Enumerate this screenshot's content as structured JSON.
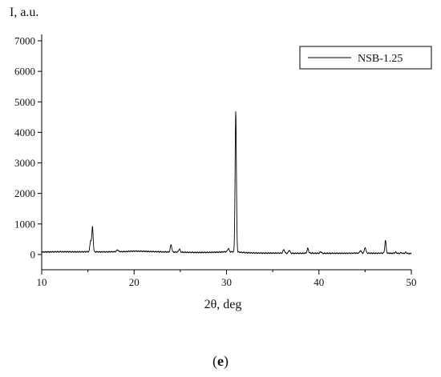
{
  "chart_data": {
    "type": "line",
    "ylabel": "I, a.u.",
    "xlabel": "2θ, deg",
    "xlim": [
      10,
      50
    ],
    "ylim": [
      -500,
      7000
    ],
    "x_ticks": [
      10,
      20,
      30,
      40,
      50
    ],
    "y_ticks": [
      0,
      1000,
      2000,
      3000,
      4000,
      5000,
      6000,
      7000
    ],
    "grid": false,
    "legend_position": "top-right",
    "series": [
      {
        "name": "NSB-1.25",
        "color": "#000000",
        "baseline": [
          [
            10.0,
            80
          ],
          [
            12.0,
            90
          ],
          [
            14.0,
            85
          ],
          [
            15.0,
            90
          ],
          [
            16.0,
            85
          ],
          [
            17.0,
            85
          ],
          [
            18.0,
            90
          ],
          [
            19.0,
            95
          ],
          [
            20.0,
            110
          ],
          [
            21.0,
            105
          ],
          [
            22.0,
            95
          ],
          [
            23.0,
            85
          ],
          [
            24.0,
            80
          ],
          [
            25.0,
            75
          ],
          [
            26.0,
            70
          ],
          [
            27.0,
            65
          ],
          [
            28.0,
            70
          ],
          [
            29.0,
            75
          ],
          [
            30.0,
            90
          ],
          [
            31.0,
            85
          ],
          [
            32.0,
            60
          ],
          [
            33.0,
            50
          ],
          [
            34.0,
            45
          ],
          [
            35.0,
            45
          ],
          [
            36.0,
            45
          ],
          [
            37.0,
            40
          ],
          [
            38.0,
            40
          ],
          [
            39.0,
            45
          ],
          [
            40.0,
            40
          ],
          [
            41.0,
            40
          ],
          [
            42.0,
            40
          ],
          [
            43.0,
            40
          ],
          [
            44.0,
            45
          ],
          [
            45.0,
            45
          ],
          [
            46.0,
            40
          ],
          [
            47.0,
            45
          ],
          [
            48.0,
            40
          ],
          [
            49.0,
            35
          ],
          [
            50.0,
            30
          ]
        ],
        "peaks": [
          {
            "x": 15.3,
            "y": 450,
            "width": 0.08
          },
          {
            "x": 15.5,
            "y": 890,
            "width": 0.07
          },
          {
            "x": 18.2,
            "y": 150,
            "width": 0.1
          },
          {
            "x": 24.0,
            "y": 320,
            "width": 0.08
          },
          {
            "x": 24.9,
            "y": 180,
            "width": 0.08
          },
          {
            "x": 30.2,
            "y": 200,
            "width": 0.08
          },
          {
            "x": 31.0,
            "y": 4680,
            "width": 0.07
          },
          {
            "x": 31.8,
            "y": 70,
            "width": 0.08
          },
          {
            "x": 36.2,
            "y": 160,
            "width": 0.08
          },
          {
            "x": 36.8,
            "y": 140,
            "width": 0.08
          },
          {
            "x": 38.8,
            "y": 200,
            "width": 0.08
          },
          {
            "x": 40.2,
            "y": 90,
            "width": 0.08
          },
          {
            "x": 44.5,
            "y": 130,
            "width": 0.08
          },
          {
            "x": 45.0,
            "y": 230,
            "width": 0.08
          },
          {
            "x": 47.2,
            "y": 460,
            "width": 0.07
          },
          {
            "x": 48.3,
            "y": 80,
            "width": 0.08
          },
          {
            "x": 48.9,
            "y": 60,
            "width": 0.08
          },
          {
            "x": 49.4,
            "y": 70,
            "width": 0.08
          }
        ]
      }
    ]
  },
  "caption": {
    "open": "(",
    "letter": "e",
    "close": ")"
  }
}
